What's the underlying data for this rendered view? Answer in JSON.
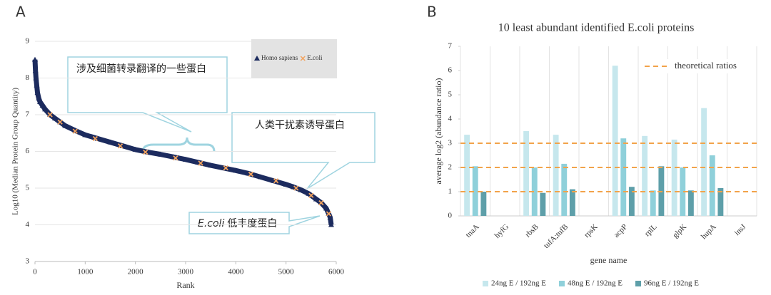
{
  "chart_data": [
    {
      "type": "scatter",
      "panel": "A",
      "xlabel": "Rank",
      "ylabel": "Log10 (Median Protein Group Quantity)",
      "xlim": [
        0,
        6000
      ],
      "xticks": [
        0,
        1000,
        2000,
        3000,
        4000,
        5000,
        6000
      ],
      "ylim": [
        3,
        9
      ],
      "yticks": [
        3,
        4,
        5,
        6,
        7,
        8,
        9
      ],
      "legend": "top-right",
      "series": [
        {
          "name": "Homo sapiens",
          "color": "#1c2b5e",
          "marker": "triangle",
          "x": [
            0,
            10,
            20,
            35,
            50,
            75,
            100,
            150,
            200,
            300,
            400,
            500,
            600,
            800,
            1000,
            1250,
            1500,
            1750,
            2000,
            2250,
            2500,
            2750,
            3000,
            3250,
            3500,
            3750,
            4000,
            4250,
            4500,
            4750,
            5000,
            5150,
            5300,
            5450,
            5600,
            5700,
            5800,
            5850,
            5880,
            5900
          ],
          "y": [
            8.5,
            8.2,
            8.0,
            7.8,
            7.6,
            7.45,
            7.35,
            7.25,
            7.15,
            7.0,
            6.9,
            6.8,
            6.7,
            6.57,
            6.45,
            6.35,
            6.25,
            6.15,
            6.05,
            5.98,
            5.92,
            5.85,
            5.78,
            5.7,
            5.62,
            5.55,
            5.48,
            5.4,
            5.3,
            5.2,
            5.1,
            5.03,
            4.95,
            4.85,
            4.7,
            4.6,
            4.45,
            4.3,
            4.2,
            4.0
          ]
        },
        {
          "name": "E.coli",
          "color": "#f2a35e",
          "marker": "x",
          "x": [
            300,
            500,
            800,
            1200,
            1700,
            2200,
            2800,
            3300,
            3800,
            4300,
            4800,
            5200,
            5500,
            5700,
            5850
          ],
          "y": [
            7.0,
            6.8,
            6.55,
            6.35,
            6.15,
            5.98,
            5.82,
            5.68,
            5.55,
            5.38,
            5.2,
            5.0,
            4.8,
            4.6,
            4.3
          ]
        }
      ],
      "annotations": [
        "涉及细菌转录翻译的一些蛋白",
        "人类干扰素诱导蛋白",
        "E.coli",
        "低丰度蛋白"
      ]
    },
    {
      "type": "bar",
      "panel": "B",
      "title": "10 least abundant identified E.coli proteins",
      "xlabel": "gene name",
      "ylabel": "average log2 (abundance ratio)",
      "categories": [
        "tnaA",
        "hyfG",
        "rbsB",
        "tufA;tufB",
        "rpsK",
        "acpP",
        "rplL",
        "glpK",
        "hupA",
        "insJ"
      ],
      "ylim": [
        0,
        7
      ],
      "yticks": [
        0,
        1,
        2,
        3,
        4,
        5,
        6,
        7
      ],
      "grid": true,
      "legend": "bottom",
      "series": [
        {
          "name": "24ng E / 192ng E",
          "color": "#c6e7ed",
          "values": [
            3.35,
            null,
            3.5,
            3.35,
            null,
            6.2,
            3.3,
            3.15,
            4.45,
            null
          ]
        },
        {
          "name": "48ng E / 192ng E",
          "color": "#8fd0da",
          "values": [
            2.05,
            null,
            2.0,
            2.15,
            null,
            3.2,
            1.05,
            2.0,
            2.5,
            null
          ]
        },
        {
          "name": "96ng E / 192ng E",
          "color": "#5e9fa9",
          "values": [
            1.0,
            null,
            0.95,
            1.1,
            null,
            1.2,
            2.05,
            1.05,
            1.15,
            null
          ]
        }
      ],
      "reference_lines": {
        "name": "theoretical ratios",
        "color": "#f2a34a",
        "values": [
          3,
          2,
          1
        ]
      }
    }
  ]
}
